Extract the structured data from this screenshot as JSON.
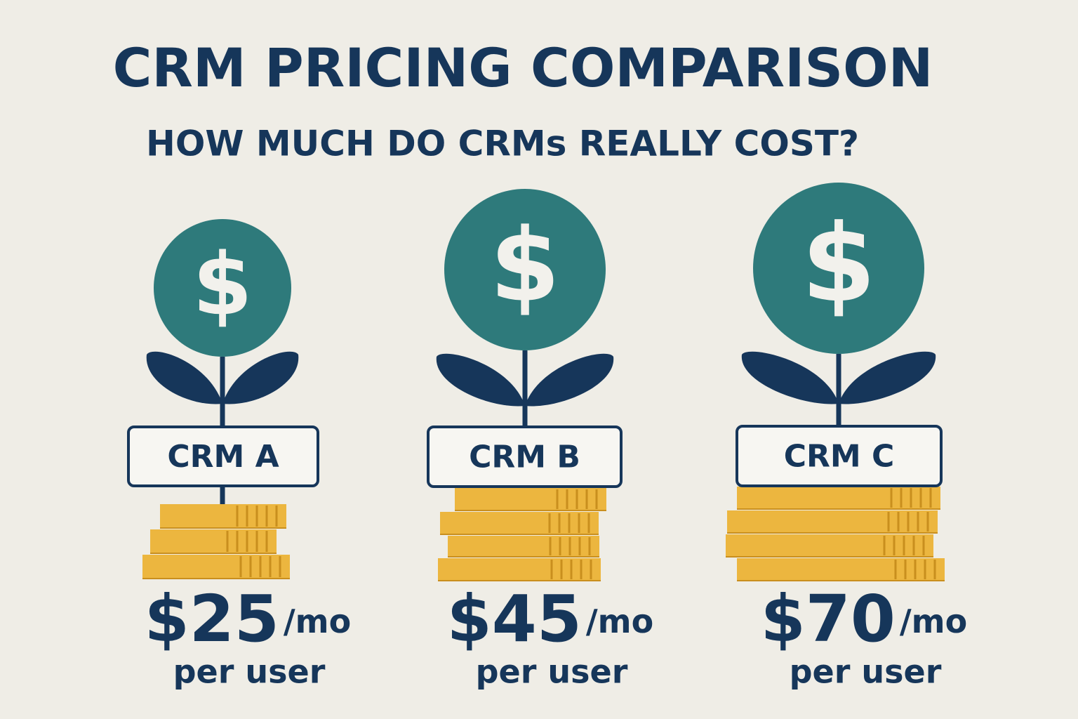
{
  "header": {
    "title": "CRM PRICING COMPARISON",
    "subtitle": "HOW MUCH DO CRMs REALLY COST?"
  },
  "plans": [
    {
      "icon": "$",
      "name": "CRM A",
      "price": "$25",
      "period": "/mo",
      "per": "per user"
    },
    {
      "icon": "$",
      "name": "CRM B",
      "price": "$45",
      "period": "/mo",
      "per": "per user"
    },
    {
      "icon": "$",
      "name": "CRM C",
      "price": "$70",
      "period": "/mo",
      "per": "per user"
    }
  ]
}
